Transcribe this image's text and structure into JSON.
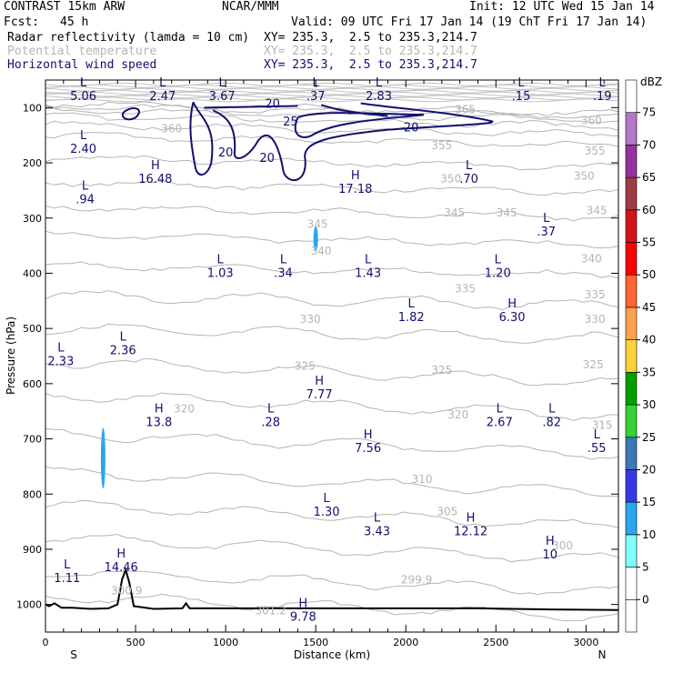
{
  "header": {
    "model": "CONTRAST 15km ARW",
    "org": "NCAR/MMM",
    "init": "Init: 12 UTC Wed 15 Jan 14",
    "fcst_label": "Fcst:",
    "fcst_value": "45 h",
    "valid": "Valid: 09 UTC Fri 17 Jan 14 (19 ChT Fri 17 Jan 14)"
  },
  "fields": [
    {
      "name": "Radar reflectivity (lamda = 10 cm)",
      "xy": "XY= 235.3,  2.5 to 235.3,214.7",
      "color": "#000000"
    },
    {
      "name": "Potential temperature",
      "xy": "XY= 235.3,  2.5 to 235.3,214.7",
      "color": "#b4b4b4"
    },
    {
      "name": "Horizontal wind speed",
      "xy": "XY= 235.3,  2.5 to 235.3,214.7",
      "color": "#101070"
    }
  ],
  "chart_data": {
    "type": "cross-section",
    "xlabel": "Distance (km)",
    "ylabel": "Pressure (hPa)",
    "xlim": [
      0,
      3180
    ],
    "ylim": [
      1050,
      50
    ],
    "xticks": [
      0,
      500,
      1000,
      1500,
      2000,
      2500,
      3000
    ],
    "yticks": [
      100,
      200,
      300,
      400,
      500,
      600,
      700,
      800,
      900,
      1000
    ],
    "left_end": "S",
    "right_end": "N",
    "colorbar": {
      "unit": "dBZ",
      "levels": [
        0,
        5,
        10,
        15,
        20,
        25,
        30,
        35,
        40,
        45,
        50,
        55,
        60,
        65,
        70,
        75
      ],
      "colors": [
        "#ffffff",
        "#ffffff",
        "#80ffff",
        "#2aa6f0",
        "#3838e6",
        "#3c78b4",
        "#36d236",
        "#00a000",
        "#ffd238",
        "#ffa050",
        "#ff6432",
        "#ff0000",
        "#d21414",
        "#a03c46",
        "#9632a0",
        "#b478c8",
        "#ffffff"
      ]
    },
    "theta_labels": [
      {
        "text": "365",
        "x": 2330,
        "p": 110
      },
      {
        "text": "360",
        "x": 700,
        "p": 145
      },
      {
        "text": "360",
        "x": 3030,
        "p": 130
      },
      {
        "text": "355",
        "x": 2200,
        "p": 175
      },
      {
        "text": "355",
        "x": 3050,
        "p": 185
      },
      {
        "text": "350",
        "x": 2250,
        "p": 235
      },
      {
        "text": "350",
        "x": 2990,
        "p": 230
      },
      {
        "text": "345",
        "x": 1510,
        "p": 318
      },
      {
        "text": "345",
        "x": 2270,
        "p": 297
      },
      {
        "text": "345",
        "x": 2560,
        "p": 297
      },
      {
        "text": "345",
        "x": 3060,
        "p": 293
      },
      {
        "text": "340",
        "x": 1530,
        "p": 366
      },
      {
        "text": "340",
        "x": 3030,
        "p": 380
      },
      {
        "text": "335",
        "x": 2330,
        "p": 435
      },
      {
        "text": "335",
        "x": 3050,
        "p": 445
      },
      {
        "text": "330",
        "x": 1470,
        "p": 490
      },
      {
        "text": "330",
        "x": 3050,
        "p": 490
      },
      {
        "text": "325",
        "x": 1440,
        "p": 575
      },
      {
        "text": "325",
        "x": 2200,
        "p": 582
      },
      {
        "text": "325",
        "x": 3040,
        "p": 572
      },
      {
        "text": "320",
        "x": 770,
        "p": 652
      },
      {
        "text": "320",
        "x": 2290,
        "p": 663
      },
      {
        "text": "315",
        "x": 3090,
        "p": 682
      },
      {
        "text": "310",
        "x": 2090,
        "p": 780
      },
      {
        "text": "305",
        "x": 2230,
        "p": 838
      },
      {
        "text": "300",
        "x": 2870,
        "p": 900
      },
      {
        "text": "300.9",
        "x": 450,
        "p": 982
      },
      {
        "text": "299.9",
        "x": 2060,
        "p": 962
      },
      {
        "text": "301.2",
        "x": 1250,
        "p": 1018
      }
    ],
    "wind_labels": [
      {
        "text": "20",
        "x": 1260,
        "p": 100
      },
      {
        "text": "20",
        "x": 2030,
        "p": 143
      },
      {
        "text": "20",
        "x": 1000,
        "p": 188
      },
      {
        "text": "20",
        "x": 1230,
        "p": 198
      },
      {
        "text": "25",
        "x": 1360,
        "p": 132
      }
    ],
    "pressure_centers": [
      {
        "type": "L",
        "value": "5.06",
        "x": 210,
        "p": 75
      },
      {
        "type": "L",
        "value": "2.47",
        "x": 650,
        "p": 75
      },
      {
        "type": "L",
        "value": "3.67",
        "x": 980,
        "p": 75
      },
      {
        "type": "L",
        "value": ".37",
        "x": 1500,
        "p": 75
      },
      {
        "type": "L",
        "value": "2.83",
        "x": 1850,
        "p": 75
      },
      {
        "type": "L",
        "value": ".15",
        "x": 2640,
        "p": 75
      },
      {
        "type": "L",
        "value": ".19",
        "x": 3090,
        "p": 75
      },
      {
        "type": "L",
        "value": "2.40",
        "x": 210,
        "p": 170
      },
      {
        "type": "H",
        "value": "16.48",
        "x": 610,
        "p": 225
      },
      {
        "type": "L",
        "value": ".70",
        "x": 2350,
        "p": 225
      },
      {
        "type": "H",
        "value": "17.18",
        "x": 1720,
        "p": 243
      },
      {
        "type": "L",
        "value": ".94",
        "x": 220,
        "p": 262
      },
      {
        "type": "L",
        "value": ".37",
        "x": 2780,
        "p": 320
      },
      {
        "type": "L",
        "value": "1.03",
        "x": 970,
        "p": 395
      },
      {
        "type": "L",
        "value": ".34",
        "x": 1320,
        "p": 395
      },
      {
        "type": "L",
        "value": "1.43",
        "x": 1790,
        "p": 395
      },
      {
        "type": "L",
        "value": "1.20",
        "x": 2510,
        "p": 395
      },
      {
        "type": "L",
        "value": "1.82",
        "x": 2030,
        "p": 475
      },
      {
        "type": "H",
        "value": "6.30",
        "x": 2590,
        "p": 475
      },
      {
        "type": "L",
        "value": "2.36",
        "x": 430,
        "p": 535
      },
      {
        "type": "L",
        "value": "2.33",
        "x": 85,
        "p": 555
      },
      {
        "type": "H",
        "value": "7.77",
        "x": 1520,
        "p": 615
      },
      {
        "type": "H",
        "value": "13.8",
        "x": 630,
        "p": 665
      },
      {
        "type": "L",
        "value": ".28",
        "x": 1250,
        "p": 665
      },
      {
        "type": "L",
        "value": "2.67",
        "x": 2520,
        "p": 665
      },
      {
        "type": "L",
        "value": ".82",
        "x": 2810,
        "p": 665
      },
      {
        "type": "H",
        "value": "7.56",
        "x": 1790,
        "p": 712
      },
      {
        "type": "L",
        "value": ".55",
        "x": 3060,
        "p": 712
      },
      {
        "type": "L",
        "value": "1.30",
        "x": 1560,
        "p": 828
      },
      {
        "type": "L",
        "value": "3.43",
        "x": 1840,
        "p": 863
      },
      {
        "type": "H",
        "value": "12.12",
        "x": 2360,
        "p": 863
      },
      {
        "type": "H",
        "value": "10",
        "x": 2800,
        "p": 905
      },
      {
        "type": "H",
        "value": "14.46",
        "x": 420,
        "p": 928
      },
      {
        "type": "L",
        "value": "1.11",
        "x": 120,
        "p": 948
      },
      {
        "type": "H",
        "value": "9.78",
        "x": 1430,
        "p": 1018
      }
    ],
    "reflectivity_features": [
      {
        "x": 1500,
        "p_top": 315,
        "p_bottom": 360,
        "dbz": 10
      },
      {
        "x": 320,
        "p_top": 680,
        "p_bottom": 790,
        "dbz": 10
      }
    ],
    "terrain": [
      [
        0,
        1000
      ],
      [
        20,
        1003
      ],
      [
        50,
        998
      ],
      [
        90,
        1006
      ],
      [
        150,
        1006
      ],
      [
        250,
        1008
      ],
      [
        350,
        1007
      ],
      [
        400,
        1000
      ],
      [
        425,
        955
      ],
      [
        445,
        937
      ],
      [
        465,
        960
      ],
      [
        490,
        1003
      ],
      [
        600,
        1008
      ],
      [
        760,
        1007
      ],
      [
        780,
        998
      ],
      [
        800,
        1007
      ],
      [
        1200,
        1007
      ],
      [
        1600,
        1007
      ],
      [
        2000,
        1007
      ],
      [
        2400,
        1007
      ],
      [
        2800,
        1009
      ],
      [
        3180,
        1010
      ]
    ]
  }
}
